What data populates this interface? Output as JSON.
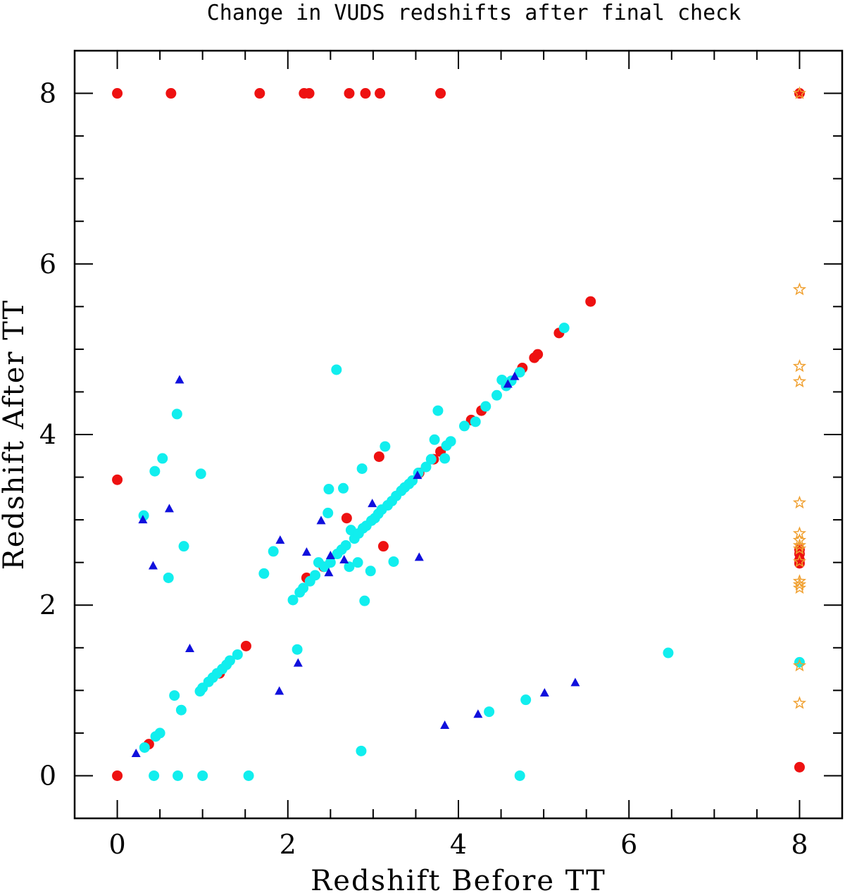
{
  "chart_data": {
    "type": "scatter",
    "title": "Change in VUDS redshifts after final check",
    "xlabel": "Redshift Before TT",
    "ylabel": "Redshift After TT",
    "xlim": [
      -0.5,
      8.5
    ],
    "ylim": [
      -0.5,
      8.5
    ],
    "x_ticks": [
      0,
      2,
      4,
      6,
      8
    ],
    "y_ticks": [
      0,
      2,
      4,
      6,
      8
    ],
    "grid": false,
    "colors": {
      "red": "#ee1111",
      "cyan": "#11eeee",
      "blue": "#1010dd",
      "orange": "#f0a030"
    },
    "series": [
      {
        "marker": "circle",
        "color": "red",
        "points": [
          [
            0.0,
            8.0
          ],
          [
            1.67,
            8.0
          ],
          [
            2.19,
            8.0
          ],
          [
            2.25,
            8.0
          ],
          [
            2.72,
            8.0
          ],
          [
            2.91,
            8.0
          ],
          [
            3.08,
            8.0
          ],
          [
            3.79,
            8.0
          ],
          [
            0.63,
            8.0
          ],
          [
            0.0,
            3.47
          ],
          [
            0.0,
            0.0
          ],
          [
            0.37,
            0.37
          ],
          [
            1.2,
            1.2
          ],
          [
            1.51,
            1.52
          ],
          [
            2.22,
            2.32
          ],
          [
            2.42,
            2.45
          ],
          [
            2.69,
            3.02
          ],
          [
            3.07,
            3.74
          ],
          [
            3.12,
            2.69
          ],
          [
            3.54,
            3.55
          ],
          [
            3.71,
            3.71
          ],
          [
            3.79,
            3.8
          ],
          [
            4.15,
            4.17
          ],
          [
            4.27,
            4.28
          ],
          [
            4.75,
            4.78
          ],
          [
            4.89,
            4.9
          ],
          [
            4.93,
            4.94
          ],
          [
            5.18,
            5.19
          ],
          [
            5.55,
            5.56
          ],
          [
            8.0,
            8.0
          ],
          [
            8.0,
            2.65
          ],
          [
            8.0,
            2.6
          ],
          [
            8.0,
            2.53
          ],
          [
            8.0,
            2.49
          ],
          [
            8.0,
            0.1
          ]
        ]
      },
      {
        "marker": "circle",
        "color": "cyan",
        "points": [
          [
            0.31,
            3.05
          ],
          [
            0.44,
            3.57
          ],
          [
            0.53,
            3.72
          ],
          [
            0.6,
            2.32
          ],
          [
            0.67,
            0.94
          ],
          [
            0.7,
            4.24
          ],
          [
            0.78,
            2.69
          ],
          [
            0.98,
            3.54
          ],
          [
            0.32,
            0.33
          ],
          [
            0.45,
            0.46
          ],
          [
            0.5,
            0.5
          ],
          [
            0.75,
            0.77
          ],
          [
            0.97,
            0.99
          ],
          [
            1.0,
            1.03
          ],
          [
            1.07,
            1.1
          ],
          [
            1.12,
            1.15
          ],
          [
            1.17,
            1.2
          ],
          [
            1.23,
            1.25
          ],
          [
            1.28,
            1.3
          ],
          [
            1.32,
            1.35
          ],
          [
            1.41,
            1.42
          ],
          [
            0.43,
            0.0
          ],
          [
            0.71,
            0.0
          ],
          [
            1.0,
            0.0
          ],
          [
            1.54,
            0.0
          ],
          [
            1.72,
            2.37
          ],
          [
            1.83,
            2.63
          ],
          [
            2.06,
            2.06
          ],
          [
            2.11,
            1.48
          ],
          [
            2.14,
            2.15
          ],
          [
            2.18,
            2.2
          ],
          [
            2.26,
            2.28
          ],
          [
            2.32,
            2.35
          ],
          [
            2.36,
            2.5
          ],
          [
            2.43,
            2.45
          ],
          [
            2.47,
            3.08
          ],
          [
            2.48,
            3.36
          ],
          [
            2.5,
            2.5
          ],
          [
            2.57,
            4.76
          ],
          [
            2.58,
            2.6
          ],
          [
            2.63,
            2.65
          ],
          [
            2.65,
            3.37
          ],
          [
            2.68,
            2.7
          ],
          [
            2.72,
            2.45
          ],
          [
            2.74,
            2.88
          ],
          [
            2.78,
            2.78
          ],
          [
            2.82,
            2.5
          ],
          [
            2.83,
            2.84
          ],
          [
            2.86,
            0.29
          ],
          [
            2.87,
            3.6
          ],
          [
            2.88,
            2.9
          ],
          [
            2.9,
            2.05
          ],
          [
            2.92,
            2.93
          ],
          [
            2.97,
            2.4
          ],
          [
            2.98,
            2.99
          ],
          [
            3.02,
            3.02
          ],
          [
            3.06,
            3.07
          ],
          [
            3.1,
            3.12
          ],
          [
            3.14,
            3.86
          ],
          [
            3.17,
            3.17
          ],
          [
            3.22,
            3.22
          ],
          [
            3.24,
            2.51
          ],
          [
            3.27,
            3.28
          ],
          [
            3.33,
            3.34
          ],
          [
            3.37,
            3.38
          ],
          [
            3.42,
            3.42
          ],
          [
            3.46,
            3.46
          ],
          [
            3.53,
            3.55
          ],
          [
            3.62,
            3.62
          ],
          [
            3.68,
            3.71
          ],
          [
            3.72,
            3.94
          ],
          [
            3.76,
            4.28
          ],
          [
            3.84,
            3.72
          ],
          [
            3.86,
            3.87
          ],
          [
            3.91,
            3.92
          ],
          [
            4.07,
            4.1
          ],
          [
            4.2,
            4.15
          ],
          [
            4.32,
            4.33
          ],
          [
            4.36,
            0.75
          ],
          [
            4.45,
            4.46
          ],
          [
            4.51,
            4.64
          ],
          [
            4.56,
            4.57
          ],
          [
            4.62,
            4.63
          ],
          [
            4.72,
            4.73
          ],
          [
            4.72,
            0.0
          ],
          [
            4.79,
            0.89
          ],
          [
            5.24,
            5.25
          ],
          [
            6.46,
            1.44
          ],
          [
            8.0,
            1.33
          ]
        ]
      },
      {
        "marker": "triangle",
        "color": "blue",
        "points": [
          [
            0.22,
            0.26
          ],
          [
            0.3,
            3.0
          ],
          [
            0.42,
            2.46
          ],
          [
            0.61,
            3.13
          ],
          [
            0.73,
            4.64
          ],
          [
            0.85,
            1.49
          ],
          [
            1.9,
            0.99
          ],
          [
            1.91,
            2.76
          ],
          [
            2.12,
            1.32
          ],
          [
            2.22,
            2.62
          ],
          [
            2.39,
            2.99
          ],
          [
            2.48,
            2.38
          ],
          [
            2.5,
            2.58
          ],
          [
            2.66,
            2.53
          ],
          [
            2.99,
            3.19
          ],
          [
            3.52,
            3.52
          ],
          [
            3.54,
            2.56
          ],
          [
            3.84,
            0.59
          ],
          [
            4.23,
            0.72
          ],
          [
            4.58,
            4.59
          ],
          [
            4.66,
            4.68
          ],
          [
            5.01,
            0.97
          ],
          [
            5.37,
            1.09
          ]
        ]
      },
      {
        "marker": "star",
        "color": "orange",
        "points": [
          [
            8.0,
            8.0
          ],
          [
            8.0,
            5.7
          ],
          [
            8.0,
            4.8
          ],
          [
            8.0,
            4.62
          ],
          [
            8.0,
            3.2
          ],
          [
            8.0,
            2.84
          ],
          [
            8.0,
            2.76
          ],
          [
            8.0,
            2.7
          ],
          [
            8.0,
            2.66
          ],
          [
            8.0,
            2.51
          ],
          [
            8.0,
            2.28
          ],
          [
            8.0,
            2.24
          ],
          [
            8.0,
            2.2
          ],
          [
            8.0,
            1.29
          ],
          [
            8.0,
            0.85
          ]
        ]
      }
    ]
  }
}
